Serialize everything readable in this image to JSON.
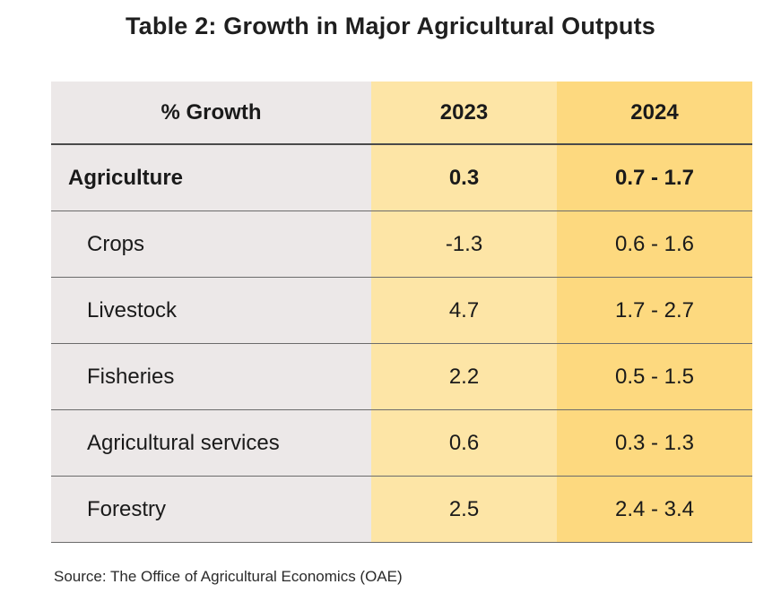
{
  "title": "Table 2: Growth in Major Agricultural Outputs",
  "table": {
    "headers": [
      "% Growth",
      "2023",
      "2024"
    ],
    "rows": [
      {
        "label": "Agriculture",
        "v2023": "0.3",
        "v2024": "0.7 - 1.7",
        "bold": true
      },
      {
        "label": "Crops",
        "v2023": "-1.3",
        "v2024": "0.6 - 1.6",
        "bold": false
      },
      {
        "label": "Livestock",
        "v2023": "4.7",
        "v2024": "1.7 - 2.7",
        "bold": false
      },
      {
        "label": "Fisheries",
        "v2023": "2.2",
        "v2024": "0.5 - 1.5",
        "bold": false
      },
      {
        "label": "Agricultural services",
        "v2023": "0.6",
        "v2024": "0.3 - 1.3",
        "bold": false
      },
      {
        "label": "Forestry",
        "v2023": "2.5",
        "v2024": "2.4 - 3.4",
        "bold": false
      }
    ]
  },
  "source": "Source: The Office of Agricultural Economics (OAE)",
  "colors": {
    "label_column": "#ece8e8",
    "col_2023": "#fde5a6",
    "col_2024": "#fdd97f"
  }
}
